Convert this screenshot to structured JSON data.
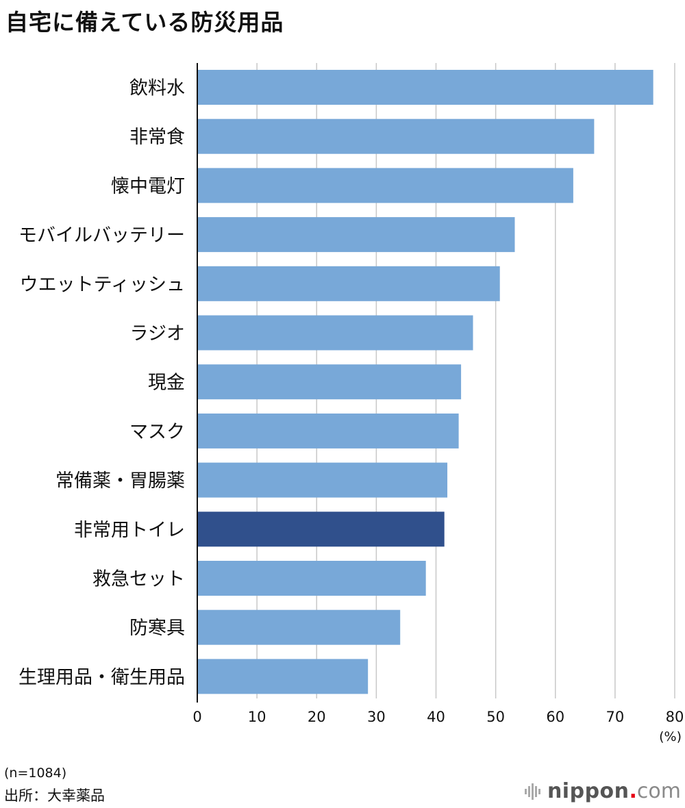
{
  "header": {
    "title": "自宅に備えている防災用品"
  },
  "chart_data": {
    "type": "bar",
    "orientation": "horizontal",
    "title": "自宅に備えている防災用品",
    "categories": [
      "飲料水",
      "非常食",
      "懐中電灯",
      "モバイルバッテリー",
      "ウエットティッシュ",
      "ラジオ",
      "現金",
      "マスク",
      "常備薬・胃腸薬",
      "非常用トイレ",
      "救急セット",
      "防寒具",
      "生理用品・衛生用品"
    ],
    "values": [
      76.4,
      66.5,
      63.0,
      53.2,
      50.7,
      46.2,
      44.2,
      43.8,
      41.9,
      41.4,
      38.3,
      34.0,
      28.6
    ],
    "highlight_category": "非常用トイレ",
    "xlim": [
      0,
      80
    ],
    "xticks": [
      0,
      10,
      20,
      30,
      40,
      50,
      60,
      70,
      80
    ],
    "x_unit": "(%)",
    "grid": "vertical",
    "colors": {
      "bar": "#78a8d8",
      "highlight": "#30508c",
      "grid": "#c8c8c8",
      "axis": "#111111"
    }
  },
  "notes": {
    "sample": "(n=1084)",
    "source": "出所：大幸薬品"
  },
  "branding": {
    "name": "nippon",
    "dot": ".",
    "tld": "com",
    "icon": "nippon-logo-icon"
  }
}
